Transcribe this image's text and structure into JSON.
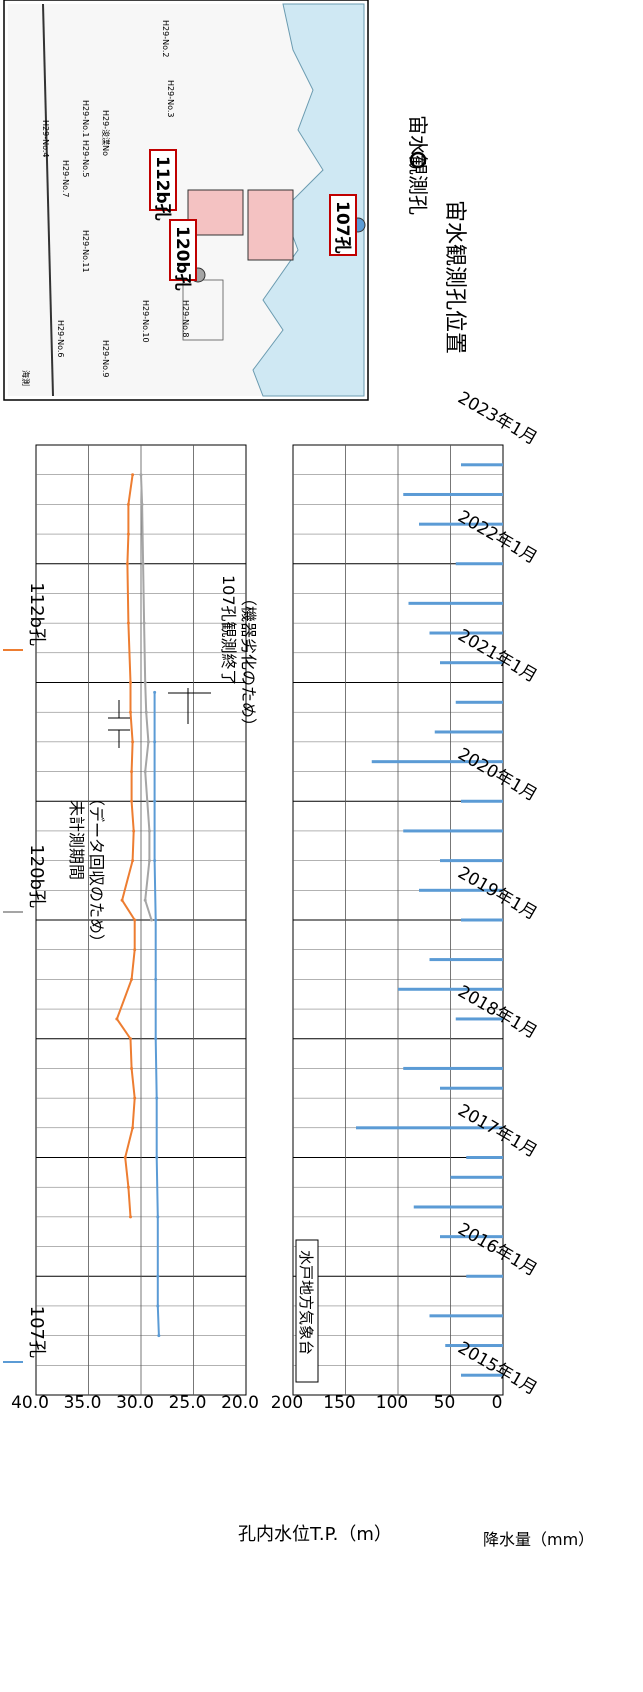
{
  "chart_data": [
    {
      "type": "line",
      "ylabel": "孔内水位T.P.（m）",
      "ylim": [
        20.0,
        40.0
      ],
      "yticks": [
        "40.0",
        "35.0",
        "30.0",
        "25.0",
        "20.0"
      ],
      "xlim": [
        "2015-01",
        "2023-01"
      ],
      "x_tick_labels": [
        "2015年1月",
        "2016年1月",
        "2017年1月",
        "2018年1月",
        "2019年1月",
        "2020年1月",
        "2021年1月",
        "2022年1月",
        "2023年1月"
      ],
      "legend": [
        "107孔",
        "120b孔",
        "112b孔"
      ],
      "series": [
        {
          "name": "107孔",
          "color": "#5b9bd5",
          "x": [
            "2015-07",
            "2015-10",
            "2016-01",
            "2016-07",
            "2017-01",
            "2017-07",
            "2018-01",
            "2018-07",
            "2019-01",
            "2019-07",
            "2020-01",
            "2020-07",
            "2020-12"
          ],
          "values": [
            28.3,
            28.4,
            28.4,
            28.4,
            28.5,
            28.5,
            28.6,
            28.6,
            28.6,
            28.7,
            28.7,
            28.7,
            28.7
          ]
        },
        {
          "name": "120b孔",
          "color": "#a5a5a5",
          "x": [
            "2019-01",
            "2019-03",
            "2019-07",
            "2019-10",
            "2020-01",
            "2020-04",
            "2020-07",
            "2020-10",
            "2021-01",
            "2021-07",
            "2022-01",
            "2022-07",
            "2022-10"
          ],
          "values": [
            29.0,
            29.6,
            29.2,
            29.2,
            29.4,
            29.6,
            29.3,
            29.5,
            29.6,
            29.7,
            29.8,
            29.9,
            30.0
          ]
        },
        {
          "name": "112b孔",
          "color": "#ed7d31",
          "x": [
            "2016-07",
            "2016-10",
            "2017-01",
            "2017-04",
            "2017-07",
            "2017-10",
            "2018-01",
            "2018-03",
            "2018-07",
            "2018-10",
            "2019-01",
            "2019-03",
            "2019-07",
            "2019-10",
            "2020-01",
            "2020-04",
            "2020-07",
            "2020-10",
            "2021-01",
            "2021-07",
            "2022-01",
            "2022-04",
            "2022-07",
            "2022-10"
          ],
          "values": [
            31.0,
            31.2,
            31.5,
            30.8,
            30.6,
            30.9,
            31.0,
            32.3,
            30.9,
            30.6,
            30.6,
            31.8,
            30.8,
            30.7,
            30.9,
            30.9,
            30.8,
            31.0,
            31.0,
            31.2,
            31.3,
            31.2,
            31.2,
            30.8
          ]
        }
      ],
      "annotations": [
        "未計測期間",
        "（データ回収のため）",
        "107孔観測終了",
        "（機器劣化のため）"
      ]
    },
    {
      "type": "bar",
      "ylabel": "降水量（mm）",
      "ylim": [
        0,
        200
      ],
      "yticks": [
        "200",
        "150",
        "100",
        "50",
        "0"
      ],
      "label_box": "水戸地方気象台",
      "color": "#5b9bd5",
      "x": [
        "2015-03",
        "2015-06",
        "2015-09",
        "2016-01",
        "2016-05",
        "2016-08",
        "2016-11",
        "2017-01",
        "2017-04",
        "2017-08",
        "2017-10",
        "2018-03",
        "2018-06",
        "2018-09",
        "2019-01",
        "2019-04",
        "2019-07",
        "2019-10",
        "2020-01",
        "2020-05",
        "2020-08",
        "2020-11",
        "2021-03",
        "2021-06",
        "2021-09",
        "2022-01",
        "2022-05",
        "2022-08",
        "2022-11"
      ],
      "values": [
        40,
        55,
        70,
        35,
        60,
        85,
        50,
        35,
        140,
        60,
        95,
        45,
        100,
        70,
        40,
        80,
        60,
        95,
        40,
        125,
        65,
        45,
        60,
        70,
        90,
        45,
        80,
        95,
        40
      ]
    }
  ],
  "map": {
    "title": "宙水観測孔位置",
    "legend": "宙水観測孔",
    "points": [
      {
        "label": "112b孔",
        "color": "#ed7d31"
      },
      {
        "label": "120b孔",
        "color": "#a5a5a5"
      },
      {
        "label": "107孔",
        "color": "#5b9bd5"
      }
    ],
    "labels": [
      "H29-No.1",
      "H29-No.2",
      "H29-No.3",
      "H29-No.4",
      "H29-No.5",
      "H29-No.6",
      "H29-No.8",
      "H29-浚渫No",
      "H29-No.9",
      "H29-No.10",
      "H29-No.11",
      "H29-No.7",
      "海測"
    ]
  }
}
